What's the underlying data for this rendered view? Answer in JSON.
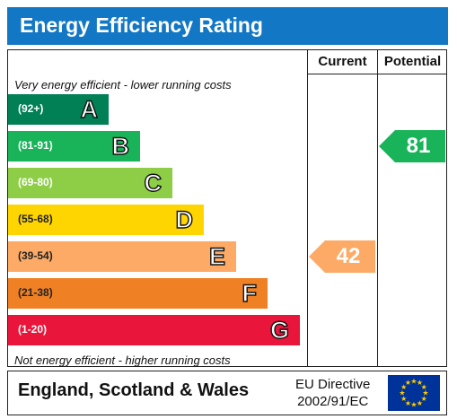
{
  "header": {
    "title": "Energy Efficiency Rating"
  },
  "columns": {
    "current": "Current",
    "potential": "Potential"
  },
  "captions": {
    "top": "Very energy efficient - lower running costs",
    "bottom": "Not energy efficient - higher running costs"
  },
  "bands": [
    {
      "range": "(92+)",
      "letter": "A",
      "color": "#008054"
    },
    {
      "range": "(81-91)",
      "letter": "B",
      "color": "#19b459"
    },
    {
      "range": "(69-80)",
      "letter": "C",
      "color": "#8dce46"
    },
    {
      "range": "(55-68)",
      "letter": "D",
      "color": "#ffd500"
    },
    {
      "range": "(39-54)",
      "letter": "E",
      "color": "#fcaa65"
    },
    {
      "range": "(21-38)",
      "letter": "F",
      "color": "#ef8023"
    },
    {
      "range": "(1-20)",
      "letter": "G",
      "color": "#e9153b"
    }
  ],
  "ratings": {
    "current": {
      "value": "42",
      "band": "E",
      "color": "#fcaa65"
    },
    "potential": {
      "value": "81",
      "band": "B",
      "color": "#19b459"
    }
  },
  "footer": {
    "region": "England, Scotland & Wales",
    "directive_line1": "EU Directive",
    "directive_line2": "2002/91/EC",
    "flag_icon": "eu-flag-icon"
  }
}
